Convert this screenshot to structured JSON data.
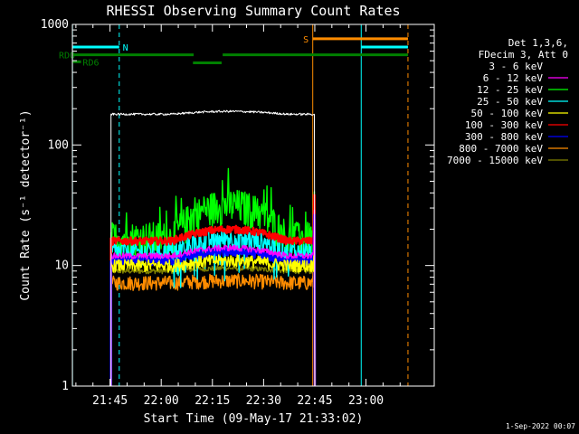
{
  "chart_data": {
    "type": "line",
    "title": "RHESSI Observing Summary Count Rates",
    "xlabel": "Start Time (09-May-17 21:33:02)",
    "ylabel": "Count Rate (s⁻¹ detector⁻¹)",
    "yscale": "log",
    "ylim": [
      1,
      1000
    ],
    "xlim_minutes": [
      -11.03,
      95.0
    ],
    "x_ticks": [
      {
        "label": "21:45",
        "minutes": 0
      },
      {
        "label": "22:00",
        "minutes": 15
      },
      {
        "label": "22:15",
        "minutes": 30
      },
      {
        "label": "22:30",
        "minutes": 45
      },
      {
        "label": "22:45",
        "minutes": 60
      },
      {
        "label": "23:00",
        "minutes": 75
      }
    ],
    "y_ticks": [
      {
        "label": "1",
        "value": 1
      },
      {
        "label": "10",
        "value": 10
      },
      {
        "label": "100",
        "value": 100
      },
      {
        "label": "1000",
        "value": 1000
      }
    ],
    "legend": {
      "header": [
        "Det 1,3,6,",
        "FDecim 3, Att 0"
      ],
      "placement": "right"
    },
    "series": [
      {
        "name": "3 - 6 keV",
        "color": "#000000",
        "start": 0.3,
        "end": 59.6,
        "baseline": 180,
        "peak": 190,
        "noise": 0.02
      },
      {
        "name": "6 - 12 keV",
        "color": "#ff00ff",
        "start": 0.3,
        "end": 59.6,
        "baseline": 12,
        "peak": 14,
        "noise": 0.06
      },
      {
        "name": "12 - 25 keV",
        "color": "#00ff00",
        "start": 0.3,
        "end": 59.6,
        "baseline": 17,
        "peak": 32,
        "noise": 0.35
      },
      {
        "name": "25 - 50 keV",
        "color": "#00ffff",
        "start": 0.3,
        "end": 59.6,
        "baseline": 13,
        "peak": 17,
        "noise": 0.22
      },
      {
        "name": "50 - 100 keV",
        "color": "#ffff00",
        "start": 0.3,
        "end": 59.6,
        "baseline": 10,
        "peak": 11,
        "noise": 0.12
      },
      {
        "name": "100 - 300 keV",
        "color": "#ff0000",
        "start": 0.3,
        "end": 59.6,
        "baseline": 16,
        "peak": 20,
        "noise": 0.07
      },
      {
        "name": "300 - 800 keV",
        "color": "#0000ff",
        "start": 0.3,
        "end": 59.6,
        "baseline": 11,
        "peak": 13,
        "noise": 0.08
      },
      {
        "name": "800 - 7000 keV",
        "color": "#ff8c00",
        "start": 0.3,
        "end": 59.6,
        "baseline": 7.2,
        "peak": 7.5,
        "noise": 0.14
      },
      {
        "name": "7000 - 15000 keV",
        "color": "#808000",
        "start": 0.3,
        "end": 59.6,
        "baseline": 9,
        "peak": 9.5,
        "noise": 0.05
      }
    ],
    "vertical_lines": [
      {
        "minutes": -11.0,
        "color": "#00ffff",
        "style": "solid"
      },
      {
        "minutes": 2.7,
        "color": "#00ffff",
        "style": "dashed"
      },
      {
        "minutes": 59.4,
        "color": "#ff8c00",
        "style": "solid"
      },
      {
        "minutes": 73.6,
        "color": "#00ffff",
        "style": "solid"
      },
      {
        "minutes": 87.3,
        "color": "#ff8c00",
        "style": "dashed"
      }
    ],
    "flag_bars": [
      {
        "label": "N",
        "color": "#00ffff",
        "segments": [
          [
            -11,
            2.7
          ],
          [
            73.6,
            87.3
          ]
        ],
        "level": 650,
        "label_at": 3.7
      },
      {
        "label": "S",
        "color": "#ff8c00",
        "segments": [
          [
            59.4,
            87.3
          ]
        ],
        "level": 760,
        "label_at": 56.6
      },
      {
        "label": "RDO",
        "color": "#008000",
        "segments": [
          [
            -11,
            24.5
          ],
          [
            33,
            87.3
          ]
        ],
        "level": 560,
        "label_at": -15.0
      },
      {
        "label": "RD6",
        "color": "#008000",
        "segments": [
          [
            -11,
            -8.5
          ]
        ],
        "level": 490,
        "label_at": -8.0
      },
      {
        "label": "",
        "color": "#008000",
        "segments": [
          [
            24.3,
            32.7
          ]
        ],
        "level": 480,
        "label_at": 0
      }
    ],
    "footer_date": "1-Sep-2022 00:07"
  }
}
